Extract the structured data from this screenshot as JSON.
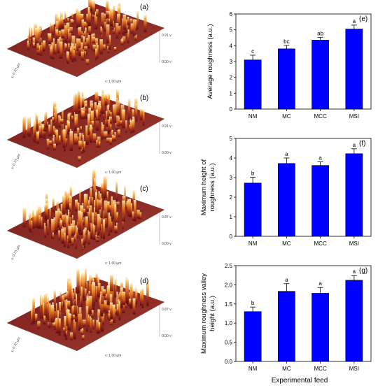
{
  "afm_panels": [
    {
      "label": "(a)",
      "scale_top": "0.91 v",
      "scale_bottom": "0.00 v",
      "x_axis": "x: 1.00 µm",
      "y_axis": "y: 0.70 µm"
    },
    {
      "label": "(b)",
      "scale_top": "0.91 v",
      "scale_bottom": "0.00 v",
      "x_axis": "x: 1.00 µm",
      "y_axis": "y: 0.70 µm"
    },
    {
      "label": "(c)",
      "scale_top": "0.87 v",
      "scale_bottom": "0.00 v",
      "x_axis": "x: 1.00 µm",
      "y_axis": "y: 0.70 µm"
    },
    {
      "label": "(d)",
      "scale_top": "0.87 v",
      "scale_bottom": "0.00 v",
      "x_axis": "x: 1.00 µm",
      "y_axis": "y: 0.70 µm"
    }
  ],
  "shared_xlabel": "Experimental feed",
  "bar_color": "#0000ff",
  "chart_data": [
    {
      "type": "bar",
      "panel_label": "(e)",
      "ylabel": "Average roughness (a.u.)",
      "categories": [
        "NM",
        "MC",
        "MCC",
        "MSI"
      ],
      "values": [
        3.1,
        3.8,
        4.35,
        5.05
      ],
      "errors": [
        0.3,
        0.22,
        0.18,
        0.25
      ],
      "letters": [
        "c",
        "bc",
        "ab",
        "a"
      ],
      "ylim": [
        0,
        6
      ],
      "yticks": [
        "0",
        "1",
        "2",
        "3",
        "4",
        "5",
        "6"
      ]
    },
    {
      "type": "bar",
      "panel_label": "(f)",
      "ylabel": "Maximum height of roughness (a.u.)",
      "categories": [
        "NM",
        "MC",
        "MCC",
        "MSI"
      ],
      "values": [
        2.72,
        3.72,
        3.62,
        4.22
      ],
      "errors": [
        0.3,
        0.28,
        0.18,
        0.25
      ],
      "letters": [
        "b",
        "a",
        "a",
        "a"
      ],
      "ylim": [
        0,
        5
      ],
      "yticks": [
        "0",
        "1",
        "2",
        "3",
        "4",
        "5"
      ]
    },
    {
      "type": "bar",
      "panel_label": "(g)",
      "ylabel": "Maximum roughness valley height (a.u.)",
      "categories": [
        "NM",
        "MC",
        "MCC",
        "MSI"
      ],
      "values": [
        1.3,
        1.83,
        1.78,
        2.12
      ],
      "errors": [
        0.12,
        0.2,
        0.15,
        0.12
      ],
      "letters": [
        "b",
        "a",
        "a",
        "a"
      ],
      "ylim": [
        0,
        2.5
      ],
      "yticks": [
        "0.0",
        "0.5",
        "1.0",
        "1.5",
        "2.0",
        "2.5"
      ]
    }
  ]
}
